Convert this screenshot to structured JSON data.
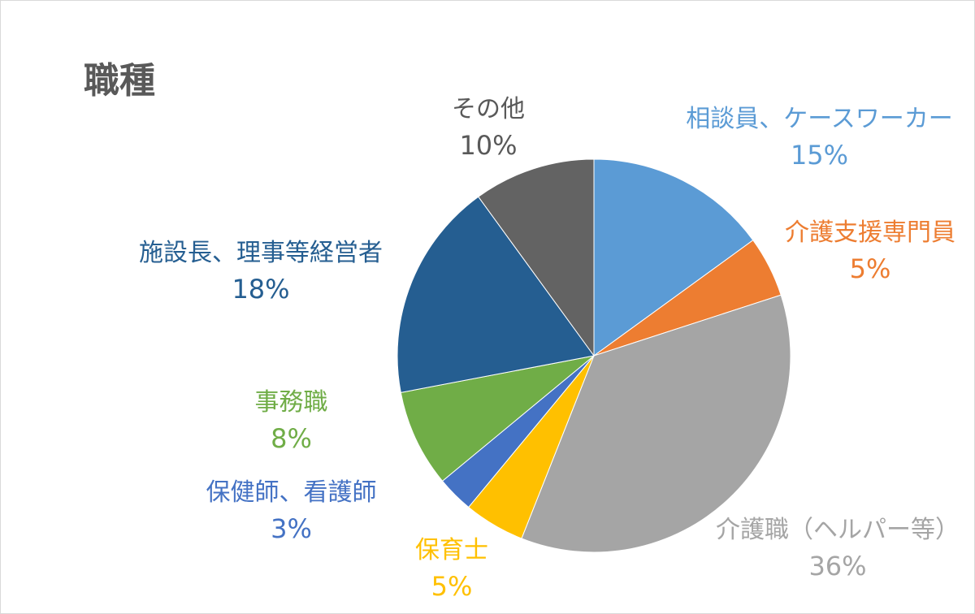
{
  "chart_data": {
    "type": "pie",
    "title": "職種",
    "start_angle_deg": 0,
    "direction": "clockwise",
    "slices": [
      {
        "label": "相談員、ケースワーカー",
        "value": 15,
        "value_label": "15%",
        "color": "#5b9bd5"
      },
      {
        "label": "介護支援専門員",
        "value": 5,
        "value_label": "5%",
        "color": "#ed7d31"
      },
      {
        "label": "介護職（ヘルパー等）",
        "value": 36,
        "value_label": "36%",
        "color": "#a5a5a5"
      },
      {
        "label": "保育士",
        "value": 5,
        "value_label": "5%",
        "color": "#ffc000"
      },
      {
        "label": "保健師、看護師",
        "value": 3,
        "value_label": "3%",
        "color": "#4472c4"
      },
      {
        "label": "事務職",
        "value": 8,
        "value_label": "8%",
        "color": "#70ad47"
      },
      {
        "label": "施設長、理事等経営者",
        "value": 18,
        "value_label": "18%",
        "color": "#255e91"
      },
      {
        "label": "その他",
        "value": 10,
        "value_label": "10%",
        "color": "#636363"
      }
    ]
  }
}
